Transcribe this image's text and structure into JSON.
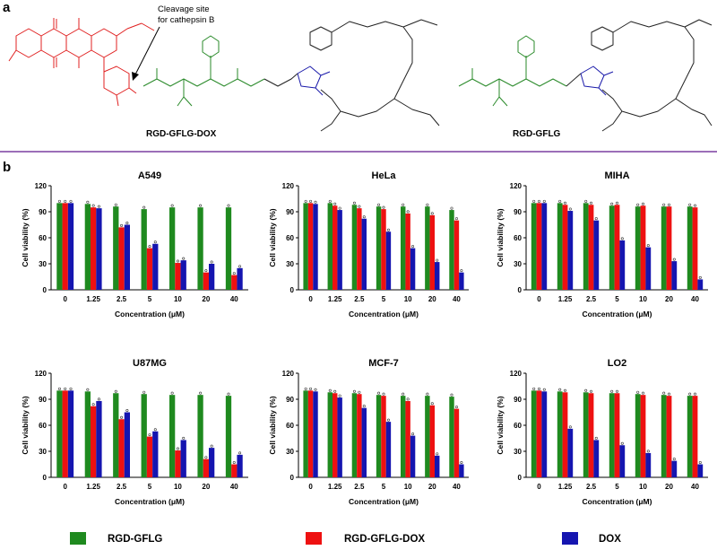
{
  "panel_a": {
    "label": "a",
    "annotation_line1": "Cleavage site",
    "annotation_line2": "for cathepsin B",
    "compound1_name": "RGD-GFLG-DOX",
    "compound2_name": "RGD-GFLG"
  },
  "panel_b": {
    "label": "b"
  },
  "colors": {
    "green": "#1f8a1f",
    "red": "#ee1111",
    "blue": "#1515b0",
    "divider": "#7b3fa0"
  },
  "legend": [
    {
      "name": "RGD-GFLG",
      "color": "#1f8a1f"
    },
    {
      "name": "RGD-GFLG-DOX",
      "color": "#ee1111"
    },
    {
      "name": "DOX",
      "color": "#1515b0"
    }
  ],
  "chart_data": [
    {
      "type": "bar",
      "title": "A549",
      "xlabel": "Concentration (μM)",
      "ylabel": "Cell viability (%)",
      "ylim": [
        0,
        120
      ],
      "yticks": [
        "0",
        "30",
        "60",
        "90",
        "120"
      ],
      "categories": [
        "0",
        "1.25",
        "2.5",
        "5",
        "10",
        "20",
        "40"
      ],
      "series": [
        {
          "name": "RGD-GFLG",
          "values": [
            100,
            99,
            96,
            93,
            95,
            95,
            95
          ]
        },
        {
          "name": "RGD-GFLG-DOX",
          "values": [
            100,
            95,
            72,
            48,
            31,
            20,
            17
          ]
        },
        {
          "name": "DOX",
          "values": [
            100,
            94,
            75,
            53,
            34,
            30,
            25
          ]
        }
      ]
    },
    {
      "type": "bar",
      "title": "HeLa",
      "xlabel": "Concentration (μM)",
      "ylabel": "Cell viability (%)",
      "ylim": [
        0,
        120
      ],
      "yticks": [
        "0",
        "30",
        "60",
        "90",
        "120"
      ],
      "categories": [
        "0",
        "1.25",
        "2.5",
        "5",
        "10",
        "20",
        "40"
      ],
      "series": [
        {
          "name": "RGD-GFLG",
          "values": [
            100,
            100,
            98,
            96,
            96,
            96,
            92
          ]
        },
        {
          "name": "RGD-GFLG-DOX",
          "values": [
            100,
            97,
            94,
            93,
            88,
            86,
            80
          ]
        },
        {
          "name": "DOX",
          "values": [
            99,
            92,
            82,
            67,
            48,
            32,
            20
          ]
        }
      ]
    },
    {
      "type": "bar",
      "title": "MIHA",
      "xlabel": "Concentration (μM)",
      "ylabel": "Cell viability (%)",
      "ylim": [
        0,
        120
      ],
      "yticks": [
        "0",
        "30",
        "60",
        "90",
        "120"
      ],
      "categories": [
        "0",
        "1.25",
        "2.5",
        "5",
        "10",
        "20",
        "40"
      ],
      "series": [
        {
          "name": "RGD-GFLG",
          "values": [
            100,
            100,
            100,
            97,
            96,
            96,
            96
          ]
        },
        {
          "name": "RGD-GFLG-DOX",
          "values": [
            100,
            98,
            98,
            98,
            97,
            96,
            95
          ]
        },
        {
          "name": "DOX",
          "values": [
            100,
            91,
            80,
            57,
            49,
            33,
            12
          ]
        }
      ]
    },
    {
      "type": "bar",
      "title": "U87MG",
      "xlabel": "Concentration (μM)",
      "ylabel": "Cell viability (%)",
      "ylim": [
        0,
        120
      ],
      "yticks": [
        "0",
        "30",
        "60",
        "90",
        "120"
      ],
      "categories": [
        "0",
        "1.25",
        "2.5",
        "5",
        "10",
        "20",
        "40"
      ],
      "series": [
        {
          "name": "RGD-GFLG",
          "values": [
            100,
            99,
            97,
            96,
            95,
            95,
            94
          ]
        },
        {
          "name": "RGD-GFLG-DOX",
          "values": [
            100,
            82,
            67,
            47,
            31,
            21,
            15
          ]
        },
        {
          "name": "DOX",
          "values": [
            100,
            88,
            75,
            53,
            43,
            34,
            26
          ]
        }
      ]
    },
    {
      "type": "bar",
      "title": "MCF-7",
      "xlabel": "Concentration (μM)",
      "ylabel": "Cell viability (%)",
      "ylim": [
        0,
        120
      ],
      "yticks": [
        "0",
        "30",
        "60",
        "90",
        "120"
      ],
      "categories": [
        "0",
        "1.25",
        "2.5",
        "5",
        "10",
        "20",
        "40"
      ],
      "series": [
        {
          "name": "RGD-GFLG",
          "values": [
            100,
            98,
            97,
            95,
            94,
            94,
            93
          ]
        },
        {
          "name": "RGD-GFLG-DOX",
          "values": [
            100,
            97,
            96,
            94,
            88,
            83,
            79
          ]
        },
        {
          "name": "DOX",
          "values": [
            99,
            92,
            80,
            64,
            48,
            25,
            15
          ]
        }
      ]
    },
    {
      "type": "bar",
      "title": "LO2",
      "xlabel": "Concentration (μM)",
      "ylabel": "Cell viability (%)",
      "ylim": [
        0,
        120
      ],
      "yticks": [
        "0",
        "30",
        "60",
        "90",
        "120"
      ],
      "categories": [
        "0",
        "1.25",
        "2.5",
        "5",
        "10",
        "20",
        "40"
      ],
      "series": [
        {
          "name": "RGD-GFLG",
          "values": [
            100,
            99,
            98,
            97,
            96,
            95,
            94
          ]
        },
        {
          "name": "RGD-GFLG-DOX",
          "values": [
            100,
            98,
            97,
            97,
            95,
            94,
            94
          ]
        },
        {
          "name": "DOX",
          "values": [
            99,
            56,
            43,
            37,
            28,
            19,
            15
          ]
        }
      ]
    }
  ]
}
